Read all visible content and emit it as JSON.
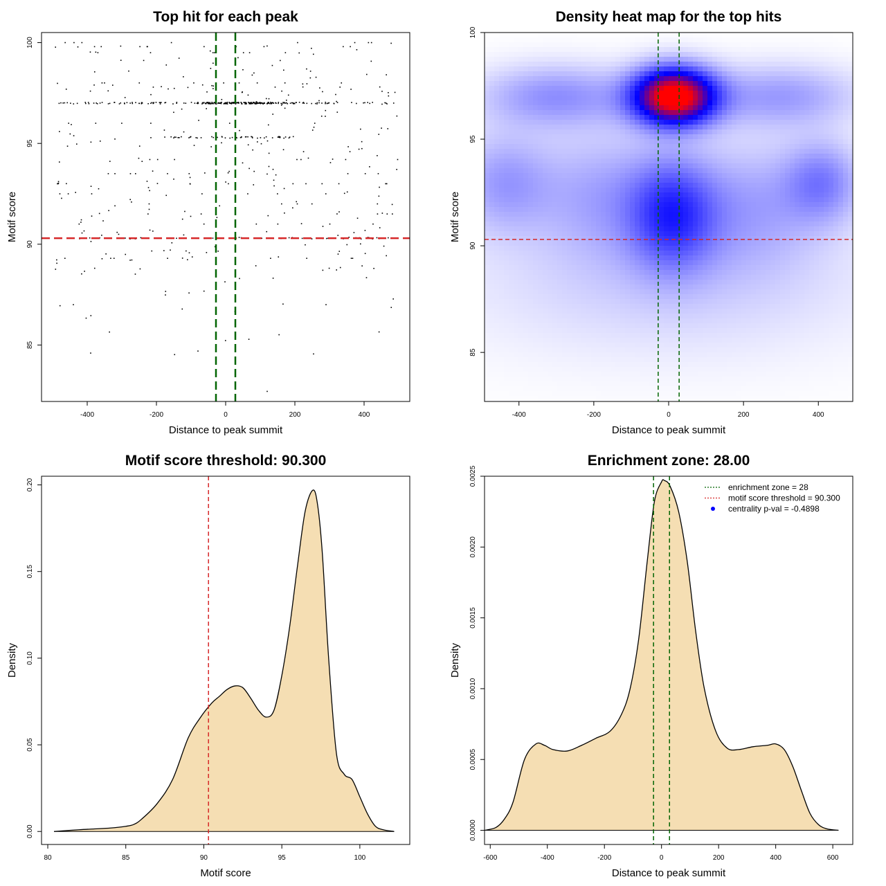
{
  "colors": {
    "threshold": "#d62728",
    "zone": "#006400",
    "fill": "#f5deb3",
    "point": "#000000",
    "heat_low": "#ffffff",
    "heat_mid": "#0000ff",
    "heat_high": "#ff0000"
  },
  "chart_data": [
    {
      "type": "scatter",
      "title": "Top hit for each peak",
      "xlabel": "Distance to peak summit",
      "ylabel": "Motif score",
      "xlim": [
        -532,
        532
      ],
      "ylim": [
        82.2,
        100.5
      ],
      "xticks": [
        "-400",
        "-200",
        "0",
        "200",
        "400"
      ],
      "xtick_values": [
        -400,
        -200,
        0,
        200,
        400
      ],
      "yticks": [
        "85",
        "90",
        "95",
        "100"
      ],
      "ytick_values": [
        85,
        90,
        95,
        100
      ],
      "hline": 90.3,
      "vlines": [
        -28,
        28
      ],
      "clusters": [
        {
          "y": 97.0,
          "x_from": -490,
          "x_to": 490,
          "count": 140
        },
        {
          "y": 97.0,
          "x_from": -60,
          "x_to": 140,
          "count": 120
        },
        {
          "y": 95.3,
          "x_from": -220,
          "x_to": 200,
          "count": 50
        },
        {
          "y": 90.3,
          "x_from": -500,
          "x_to": 500,
          "count": 40
        }
      ],
      "n_scattered": 380
    },
    {
      "type": "heatmap",
      "title": "Density heat map for the top hits",
      "xlabel": "Distance to peak summit",
      "ylabel": "Motif score",
      "xlim": [
        -492,
        492
      ],
      "ylim": [
        82.7,
        100.0
      ],
      "xticks": [
        "-400",
        "-200",
        "0",
        "200",
        "400"
      ],
      "xtick_values": [
        -400,
        -200,
        0,
        200,
        400
      ],
      "yticks": [
        "85",
        "90",
        "95",
        "100"
      ],
      "ytick_values": [
        85,
        90,
        95,
        100
      ],
      "hline": 90.3,
      "vlines": [
        -28,
        28
      ],
      "hotspots": [
        {
          "x": 15,
          "y": 97.0,
          "sx": 75,
          "sy": 0.9,
          "w": 1.45
        },
        {
          "x": 10,
          "y": 91.5,
          "sx": 80,
          "sy": 1.8,
          "w": 0.5
        },
        {
          "x": -300,
          "y": 97.0,
          "sx": 140,
          "sy": 1.0,
          "w": 0.28
        },
        {
          "x": 300,
          "y": 97.0,
          "sx": 140,
          "sy": 1.0,
          "w": 0.25
        },
        {
          "x": 410,
          "y": 93.0,
          "sx": 70,
          "sy": 1.3,
          "w": 0.3
        },
        {
          "x": -440,
          "y": 93.0,
          "sx": 90,
          "sy": 1.6,
          "w": 0.24
        },
        {
          "x": -180,
          "y": 92.5,
          "sx": 120,
          "sy": 2.0,
          "w": 0.2
        },
        {
          "x": 220,
          "y": 92.0,
          "sx": 130,
          "sy": 2.0,
          "w": 0.2
        },
        {
          "x": 0,
          "y": 88.5,
          "sx": 380,
          "sy": 2.5,
          "w": 0.12
        }
      ]
    },
    {
      "type": "area",
      "title": "Motif score threshold: 90.300",
      "xlabel": "Motif score",
      "ylabel": "Density",
      "xlim": [
        79.6,
        103.2
      ],
      "ylim": [
        -0.0075,
        0.205
      ],
      "xticks": [
        "80",
        "85",
        "90",
        "95",
        "100"
      ],
      "xtick_values": [
        80,
        85,
        90,
        95,
        100
      ],
      "yticks": [
        "0.00",
        "0.05",
        "0.10",
        "0.15",
        "0.20"
      ],
      "ytick_values": [
        0,
        0.05,
        0.1,
        0.15,
        0.2
      ],
      "vline": 90.3,
      "x": [
        80.4,
        82,
        83,
        84,
        85,
        85.5,
        86,
        87,
        88,
        89,
        89.8,
        90.5,
        91,
        91.5,
        92,
        92.5,
        93,
        93.5,
        94,
        94.5,
        95,
        95.5,
        96,
        96.5,
        97,
        97.3,
        97.6,
        98,
        98.5,
        99,
        99.5,
        100,
        100.5,
        101,
        101.5,
        102.2
      ],
      "values": [
        0.0,
        0.001,
        0.0015,
        0.002,
        0.003,
        0.004,
        0.007,
        0.016,
        0.03,
        0.054,
        0.066,
        0.074,
        0.078,
        0.082,
        0.084,
        0.083,
        0.077,
        0.07,
        0.066,
        0.07,
        0.09,
        0.118,
        0.153,
        0.185,
        0.197,
        0.188,
        0.16,
        0.1,
        0.045,
        0.033,
        0.03,
        0.02,
        0.01,
        0.003,
        0.001,
        0.0
      ]
    },
    {
      "type": "area",
      "title": "Enrichment zone: 28.00",
      "xlabel": "Distance to peak summit",
      "ylabel": "Density",
      "xlim": [
        -620,
        670
      ],
      "ylim": [
        -0.0001,
        0.0025
      ],
      "xticks": [
        "-600",
        "-400",
        "-200",
        "0",
        "200",
        "400",
        "600"
      ],
      "xtick_values": [
        -600,
        -400,
        -200,
        0,
        200,
        400,
        600
      ],
      "yticks": [
        "0.0000",
        "0.0005",
        "0.0010",
        "0.0015",
        "0.0020",
        "0.0025"
      ],
      "ytick_values": [
        0,
        0.0005,
        0.001,
        0.0015,
        0.002,
        0.0025
      ],
      "vlines": [
        -28,
        28
      ],
      "x": [
        -620,
        -580,
        -550,
        -520,
        -480,
        -440,
        -410,
        -380,
        -330,
        -280,
        -230,
        -180,
        -140,
        -110,
        -80,
        -50,
        -25,
        0,
        10,
        30,
        60,
        90,
        120,
        150,
        190,
        230,
        270,
        320,
        370,
        400,
        430,
        460,
        490,
        520,
        550,
        580,
        620
      ],
      "values": [
        0.0,
        2e-05,
        8e-05,
        0.0002,
        0.0005,
        0.00061,
        0.0006,
        0.00057,
        0.00056,
        0.0006,
        0.00065,
        0.0007,
        0.00082,
        0.001,
        0.00135,
        0.0019,
        0.00232,
        0.00246,
        0.00247,
        0.00243,
        0.00225,
        0.0019,
        0.0014,
        0.001,
        0.0007,
        0.00058,
        0.00057,
        0.00059,
        0.0006,
        0.00061,
        0.00057,
        0.00045,
        0.00028,
        0.00012,
        4e-05,
        1e-05,
        0.0
      ],
      "legend": [
        {
          "label": "enrichment zone = 28",
          "color": "#006400",
          "kind": "line"
        },
        {
          "label": "motif score threshold = 90.300",
          "color": "#d62728",
          "kind": "line"
        },
        {
          "label": "centrality p-val = -0.4898",
          "color": "#0000ff",
          "kind": "point"
        }
      ],
      "legend_position": "top-right"
    }
  ]
}
